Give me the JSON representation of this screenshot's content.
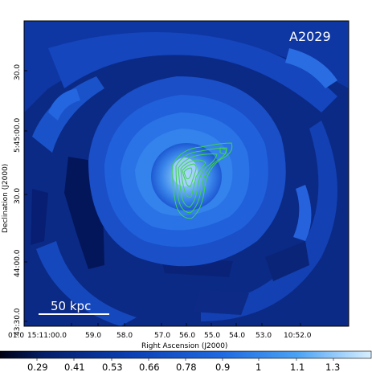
{
  "figure": {
    "object_label": "A2029",
    "scale_bar_label": "50 kpc",
    "x_axis_title": "Right Ascension (J2000)",
    "y_axis_title": "Declination (J2000)",
    "x_tick_labels": [
      "01.0",
      "15:11:00.0",
      "59.0",
      "58.0",
      "57.0",
      "56.0",
      "55.0",
      "54.0",
      "53.0",
      "10:52.0"
    ],
    "y_tick_labels": [
      "30.0",
      "5:45:00.0",
      "30.0",
      "44:00.0",
      "43:30.0"
    ],
    "colorbar_tick_labels": [
      "0.29",
      "0.41",
      "0.53",
      "0.66",
      "0.78",
      "0.9",
      "1",
      "1.1",
      "1.3"
    ],
    "colors": {
      "background_dark": "#0b2a86",
      "mid_blue": "#1c57d6",
      "bright_blue": "#3d8cf0",
      "core_light": "#a9d4ff",
      "contour_green": "#3fd44a",
      "label_white": "#ffffff"
    }
  }
}
